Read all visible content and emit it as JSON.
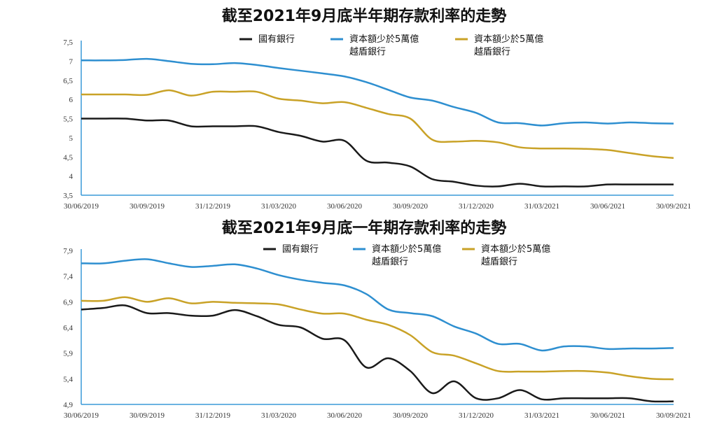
{
  "chart_data": [
    {
      "type": "line",
      "title": "截至2021年9月底半年期存款利率的走勢",
      "xlabel": "",
      "ylabel": "",
      "ylim": [
        3.5,
        7.5
      ],
      "yticks": [
        "3,5",
        "4",
        "4,5",
        "5",
        "5,5",
        "6",
        "6,5",
        "7",
        "7,5"
      ],
      "xticks": [
        "30/06/2019",
        "30/09/2019",
        "31/12/2019",
        "31/03/2020",
        "30/06/2020",
        "30/09/2020",
        "31/12/2020",
        "31/03/2021",
        "30/06/2021",
        "30/09/2021"
      ],
      "x_range": [
        "06/2019",
        "09/2021"
      ],
      "legend_position": "top",
      "grid": false,
      "series": [
        {
          "name": "國有銀行",
          "color": "#1a1a1a",
          "values": [
            5.5,
            5.5,
            5.5,
            5.45,
            5.45,
            5.3,
            5.3,
            5.3,
            5.3,
            5.15,
            5.05,
            4.9,
            4.92,
            4.4,
            4.35,
            4.25,
            3.92,
            3.85,
            3.75,
            3.73,
            3.8,
            3.73,
            3.73,
            3.73,
            3.78,
            3.78,
            3.78,
            3.78
          ]
        },
        {
          "name": "資本額少於5萬億越盾銀行",
          "color": "#2e8fd0",
          "values": [
            7.02,
            7.02,
            7.03,
            7.06,
            7.0,
            6.93,
            6.92,
            6.95,
            6.9,
            6.82,
            6.75,
            6.68,
            6.6,
            6.45,
            6.25,
            6.05,
            5.97,
            5.8,
            5.65,
            5.4,
            5.38,
            5.32,
            5.38,
            5.4,
            5.37,
            5.4,
            5.38,
            5.37
          ]
        },
        {
          "name": "資本額少於5萬億越盾銀行",
          "color": "#c9a227",
          "values": [
            6.13,
            6.13,
            6.13,
            6.12,
            6.24,
            6.1,
            6.2,
            6.2,
            6.2,
            6.02,
            5.97,
            5.9,
            5.93,
            5.78,
            5.62,
            5.5,
            4.95,
            4.9,
            4.92,
            4.88,
            4.75,
            4.72,
            4.72,
            4.71,
            4.68,
            4.6,
            4.52,
            4.47
          ]
        }
      ]
    },
    {
      "type": "line",
      "title": "截至2021年9月底一年期存款利率的走勢",
      "xlabel": "",
      "ylabel": "",
      "ylim": [
        4.9,
        7.9
      ],
      "yticks": [
        "4,9",
        "5,4",
        "5,9",
        "6,4",
        "6,9",
        "7,4",
        "7,9"
      ],
      "xticks": [
        "30/06/2019",
        "30/09/2019",
        "31/12/2019",
        "31/03/2020",
        "30/06/2020",
        "30/09/2020",
        "31/12/2020",
        "31/03/2021",
        "30/06/2021",
        "30/09/2021"
      ],
      "x_range": [
        "06/2019",
        "09/2021"
      ],
      "legend_position": "top",
      "grid": false,
      "series": [
        {
          "name": "國有銀行",
          "color": "#1a1a1a",
          "values": [
            6.75,
            6.78,
            6.83,
            6.68,
            6.68,
            6.63,
            6.63,
            6.74,
            6.62,
            6.45,
            6.4,
            6.18,
            6.15,
            5.62,
            5.8,
            5.55,
            5.12,
            5.35,
            5.02,
            5.02,
            5.18,
            5.0,
            5.02,
            5.02,
            5.02,
            5.02,
            4.96,
            4.96
          ]
        },
        {
          "name": "資本額少於5萬億越盾銀行",
          "color": "#2e8fd0",
          "values": [
            7.65,
            7.65,
            7.7,
            7.73,
            7.65,
            7.58,
            7.6,
            7.63,
            7.55,
            7.42,
            7.33,
            7.27,
            7.22,
            7.05,
            6.75,
            6.68,
            6.62,
            6.42,
            6.28,
            6.08,
            6.08,
            5.95,
            6.03,
            6.03,
            5.98,
            5.99,
            5.99,
            6.0
          ]
        },
        {
          "name": "資本額少於5萬億越盾銀行",
          "color": "#c9a227",
          "values": [
            6.92,
            6.92,
            6.99,
            6.9,
            6.97,
            6.87,
            6.9,
            6.88,
            6.87,
            6.85,
            6.75,
            6.67,
            6.67,
            6.55,
            6.45,
            6.25,
            5.92,
            5.85,
            5.7,
            5.55,
            5.54,
            5.54,
            5.55,
            5.55,
            5.52,
            5.45,
            5.4,
            5.39
          ]
        }
      ]
    }
  ],
  "legend_labels": {
    "state": "國有銀行",
    "blue_line1": "資本額少於5萬億",
    "blue_line2": "越盾銀行",
    "gold_line1": "資本額少於5萬億",
    "gold_line2": "越盾銀行"
  }
}
